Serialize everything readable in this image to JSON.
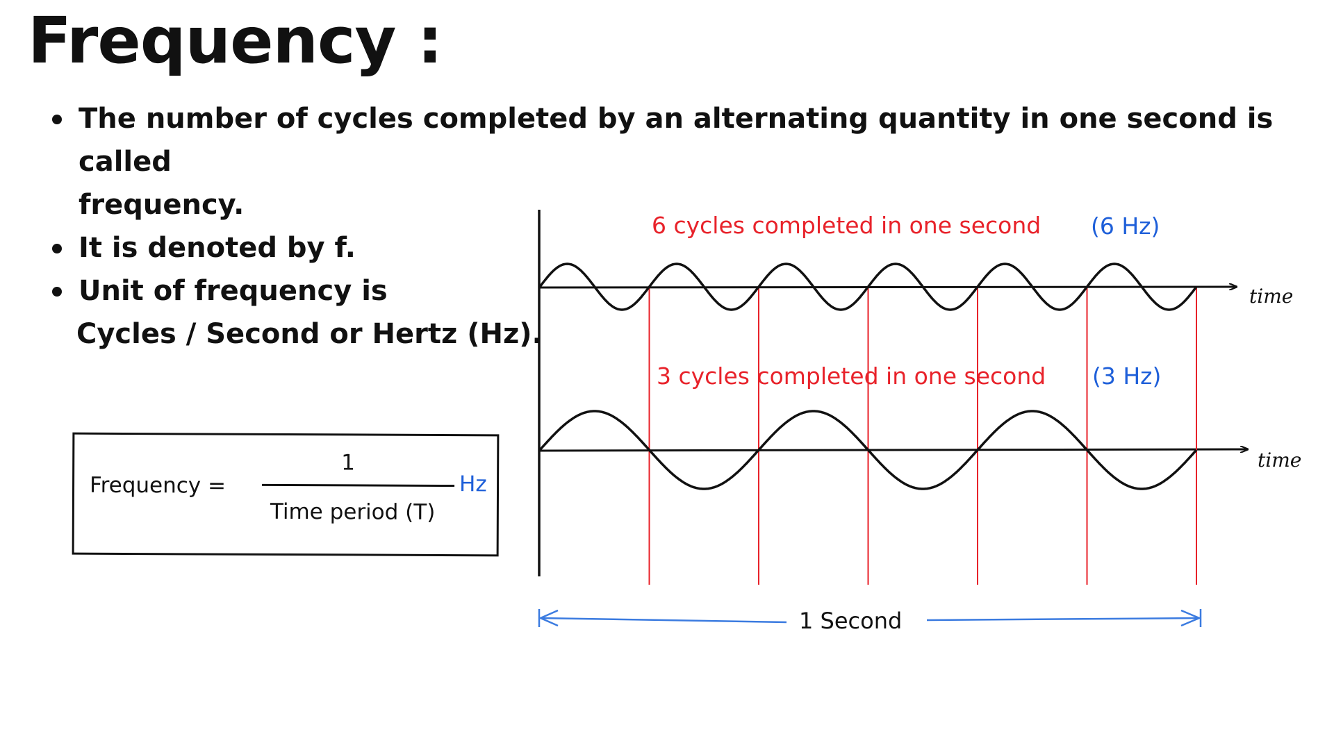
{
  "title": "Frequency :",
  "bullets": [
    {
      "line1": "The number of cycles completed by an alternating quantity in one second is called",
      "line2": "frequency."
    },
    {
      "line1": "It is denoted by f."
    },
    {
      "line1": "Unit of frequency is",
      "line2": "Cycles / Second or Hertz (Hz)."
    }
  ],
  "formula": {
    "label": "Frequency =",
    "numerator": "1",
    "denominator": "Time period (T)",
    "unit": "Hz"
  },
  "waves": [
    {
      "caption": "6 cycles completed in one second",
      "freq_label": "(6 Hz)",
      "axis_label": "time",
      "cycles": 6
    },
    {
      "caption": "3 cycles completed in one second",
      "freq_label": "(3 Hz)",
      "axis_label": "time",
      "cycles": 3
    }
  ],
  "span_label": "1 Second",
  "colors": {
    "text": "#111111",
    "caption": "#e8222a",
    "accent_blue": "#1e5fd9",
    "marker_red": "#e8222a",
    "span_blue": "#3b7be0"
  }
}
